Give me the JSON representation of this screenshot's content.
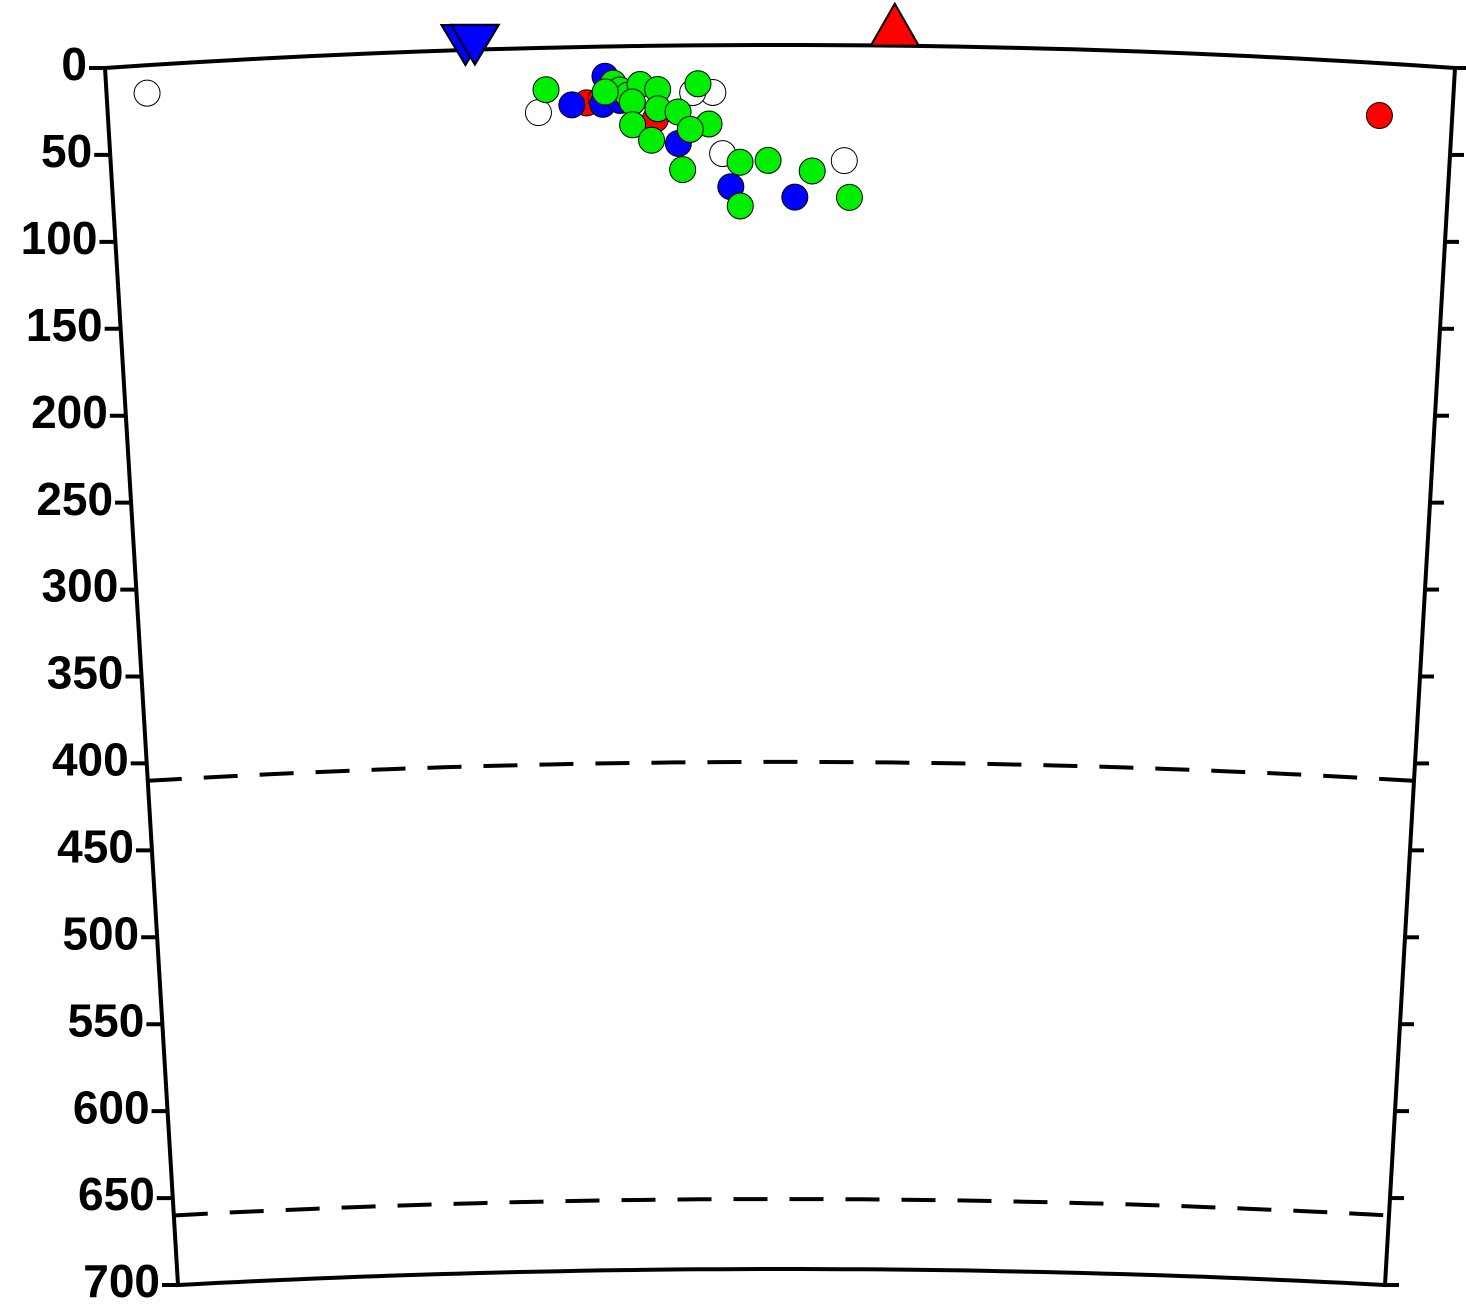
{
  "chart_data": {
    "type": "scatter",
    "xlim": [
      0,
      100
    ],
    "ylim": [
      0,
      700
    ],
    "yticks": [
      0,
      50,
      100,
      150,
      200,
      250,
      300,
      350,
      400,
      450,
      500,
      550,
      600,
      650,
      700
    ],
    "reference_depths": [
      410,
      660
    ],
    "stations": [
      {
        "color": "#0000ff",
        "shape": "down",
        "x": 26.7
      },
      {
        "color": "#0000ff",
        "shape": "down",
        "x": 27.4
      },
      {
        "color": "#ff0000",
        "shape": "up",
        "x": 58.5
      }
    ],
    "series": [
      {
        "color": "#ffffff",
        "x": [
          3,
          32,
          45,
          45.7,
          54.8,
          43.5
        ],
        "values": [
          16,
          37,
          27,
          62,
          66,
          27
        ]
      },
      {
        "color": "#ff0000",
        "x": [
          94.6,
          35.6,
          36.7,
          40.7
        ],
        "values": [
          30,
          32,
          30,
          42
        ]
      },
      {
        "color": "#0000ff",
        "x": [
          37,
          34.5,
          36.8,
          42.4,
          46.3,
          51.1,
          38.1
        ],
        "values": [
          17,
          33,
          33,
          56,
          81,
          87,
          31
        ]
      },
      {
        "color": "#00ee00",
        "x": [
          32.6,
          37.6,
          38.1,
          38.7,
          39.6,
          39,
          40.9,
          40.9,
          42.4,
          43.9,
          44.7,
          43.3,
          39,
          40.4,
          42.7,
          47,
          49.1,
          52.4,
          47,
          55.2,
          37
        ],
        "values": [
          24,
          21,
          25,
          28,
          22,
          32,
          25,
          36,
          38,
          22,
          45,
          48,
          45,
          54,
          71,
          67,
          66,
          72,
          92,
          87,
          26
        ]
      }
    ]
  }
}
